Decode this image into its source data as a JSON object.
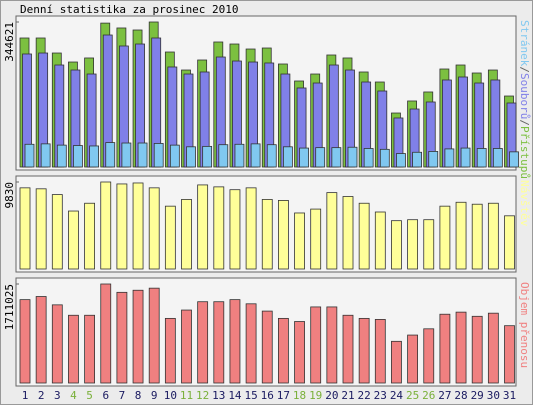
{
  "chart_data": [
    {
      "type": "bar",
      "title": "Denní statistika za prosinec 2010",
      "categories": [
        1,
        2,
        3,
        4,
        5,
        6,
        7,
        8,
        9,
        10,
        11,
        12,
        13,
        14,
        15,
        16,
        17,
        18,
        19,
        20,
        21,
        22,
        23,
        24,
        25,
        26,
        27,
        28,
        29,
        30,
        31
      ],
      "category_colors": [
        "#1a1a60",
        "#1a1a60",
        "#1a1a60",
        "#7ab03a",
        "#7ab03a",
        "#1a1a60",
        "#1a1a60",
        "#1a1a60",
        "#1a1a60",
        "#1a1a60",
        "#7ab03a",
        "#7ab03a",
        "#1a1a60",
        "#1a1a60",
        "#1a1a60",
        "#1a1a60",
        "#1a1a60",
        "#7ab03a",
        "#7ab03a",
        "#1a1a60",
        "#1a1a60",
        "#1a1a60",
        "#1a1a60",
        "#1a1a60",
        "#7ab03a",
        "#7ab03a",
        "#1a1a60",
        "#1a1a60",
        "#1a1a60",
        "#1a1a60",
        "#1a1a60"
      ],
      "legend_separator": "/",
      "series": [
        {
          "name": "Přístupů",
          "color": "#7cc040",
          "values": [
            306600,
            306600,
            270900,
            249500,
            259100,
            342000,
            330400,
            325600,
            344621,
            273300,
            230500,
            254300,
            297100,
            292300,
            280400,
            282800,
            244800,
            204400,
            221000,
            266200,
            259100,
            225800,
            202000,
            128300,
            156900,
            178300,
            232900,
            242400,
            223400,
            230500,
            168700
          ]
        },
        {
          "name": "Souborů",
          "color": "#8080e8",
          "values": [
            268600,
            270900,
            242400,
            230500,
            221000,
            313700,
            287600,
            292300,
            306600,
            237700,
            221000,
            225800,
            261400,
            251900,
            249500,
            247200,
            221000,
            187800,
            199600,
            242400,
            230500,
            202000,
            180600,
            116500,
            137800,
            154500,
            206800,
            213900,
            199600,
            206800,
            152100
          ]
        },
        {
          "name": "Stránek",
          "color": "#80c8f0",
          "values": [
            54000,
            55000,
            52000,
            51000,
            50000,
            58000,
            57000,
            57000,
            56000,
            52000,
            48000,
            49000,
            53000,
            54000,
            55000,
            53000,
            48000,
            45000,
            46000,
            46000,
            47000,
            44000,
            42000,
            32000,
            35000,
            37000,
            43000,
            45000,
            44000,
            44000,
            36000
          ]
        }
      ],
      "ylim": [
        0,
        344621
      ],
      "yticks": [
        344621
      ]
    },
    {
      "type": "bar",
      "series": [
        {
          "name": "Návštěv",
          "color": "#ffff99",
          "values": [
            9170,
            9060,
            8410,
            6550,
            7430,
            9830,
            9610,
            9720,
            9170,
            7100,
            7860,
            9500,
            9280,
            8960,
            9170,
            7860,
            7750,
            6330,
            6770,
            8630,
            8190,
            7430,
            6440,
            5460,
            5570,
            5570,
            7100,
            7540,
            7320,
            7430,
            6010
          ]
        }
      ],
      "ylim": [
        0,
        9830
      ],
      "yticks": [
        9830
      ]
    },
    {
      "type": "bar",
      "series": [
        {
          "name": "Objem přenosu",
          "color": "#f08080",
          "values": [
            1440900,
            1494900,
            1350800,
            1170700,
            1170700,
            1711025,
            1567000,
            1603000,
            1639000,
            1116700,
            1260800,
            1404900,
            1404900,
            1440900,
            1368800,
            1242800,
            1116700,
            1062600,
            1314800,
            1314800,
            1170700,
            1116700,
            1098700,
            720400,
            828500,
            936600,
            1188700,
            1224700,
            1152700,
            1206700,
            990600
          ]
        }
      ],
      "ylim": [
        0,
        1711025
      ],
      "yticks": [
        1711025
      ]
    }
  ]
}
